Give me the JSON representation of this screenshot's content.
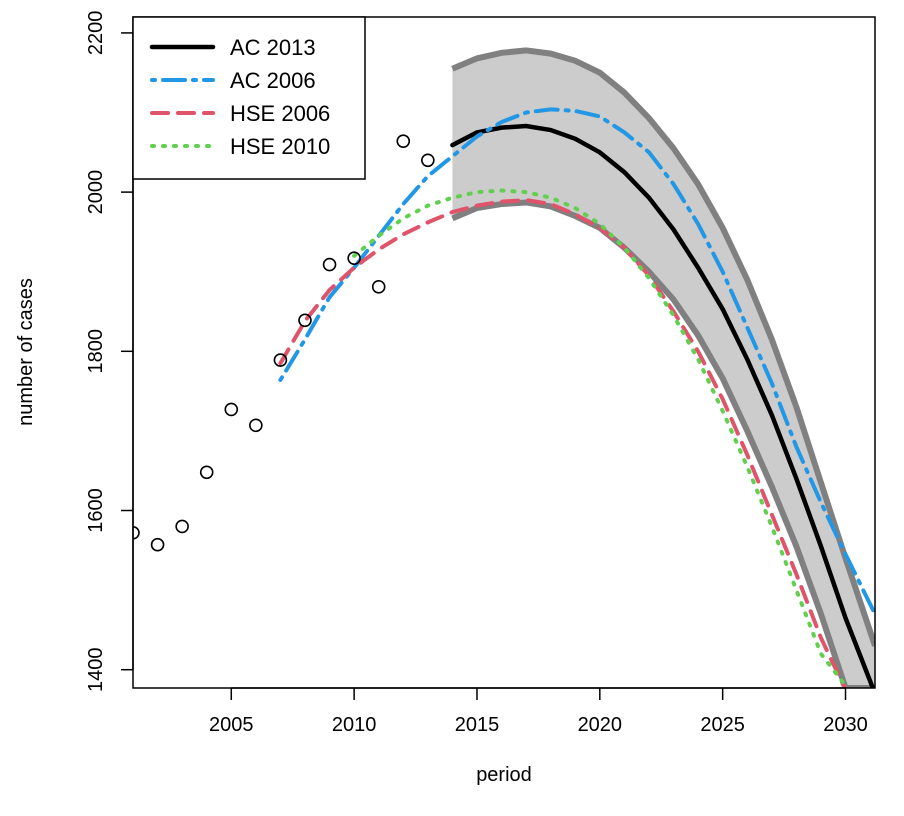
{
  "chart_data": {
    "type": "line",
    "title": "",
    "xlabel": "period",
    "ylabel": "number of cases",
    "xlim": [
      2001,
      2031.2
    ],
    "ylim": [
      1377,
      2220
    ],
    "x_ticks": [
      2005,
      2010,
      2015,
      2020,
      2025,
      2030
    ],
    "y_ticks": [
      1400,
      1600,
      1800,
      2000,
      2200
    ],
    "grid": false,
    "legend_position": "top-left",
    "observed": {
      "x": [
        2001,
        2002,
        2003,
        2004,
        2005,
        2006,
        2007,
        2008,
        2009,
        2010,
        2011,
        2012,
        2013
      ],
      "y": [
        1572,
        1557,
        1580,
        1648,
        1727,
        1707,
        1789,
        1839,
        1909,
        1917,
        1881,
        2064,
        2040
      ]
    },
    "band": {
      "x": [
        2014,
        2015,
        2016,
        2017,
        2018,
        2019,
        2020,
        2021,
        2022,
        2023,
        2024,
        2025,
        2026,
        2027,
        2028,
        2029,
        2030,
        2031.2
      ],
      "upper": [
        2155,
        2168,
        2175,
        2178,
        2174,
        2165,
        2150,
        2125,
        2093,
        2055,
        2010,
        1955,
        1890,
        1815,
        1730,
        1635,
        1540,
        1430
      ],
      "lower": [
        1967,
        1980,
        1985,
        1987,
        1982,
        1970,
        1955,
        1930,
        1900,
        1865,
        1820,
        1766,
        1700,
        1630,
        1555,
        1470,
        1377,
        1377
      ]
    },
    "series": [
      {
        "name": "AC 2013",
        "color": "#000000",
        "dash": "solid",
        "x": [
          2014,
          2015,
          2016,
          2017,
          2018,
          2019,
          2020,
          2021,
          2022,
          2023,
          2024,
          2025,
          2026,
          2027,
          2028,
          2029,
          2030,
          2031.2
        ],
        "y": [
          2059,
          2075,
          2081,
          2083,
          2078,
          2067,
          2050,
          2025,
          1993,
          1953,
          1905,
          1853,
          1790,
          1720,
          1640,
          1555,
          1465,
          1370
        ]
      },
      {
        "name": "AC 2006",
        "color": "#2297E6",
        "dash": "dotdash",
        "x": [
          2007,
          2008,
          2009,
          2010,
          2011,
          2012,
          2013,
          2014,
          2015,
          2016,
          2017,
          2018,
          2019,
          2020,
          2021,
          2022,
          2023,
          2024,
          2025,
          2026,
          2027,
          2028,
          2029,
          2030,
          2031.2
        ],
        "y": [
          1764,
          1815,
          1868,
          1905,
          1945,
          1985,
          2020,
          2045,
          2070,
          2088,
          2100,
          2104,
          2102,
          2095,
          2075,
          2050,
          2010,
          1960,
          1900,
          1830,
          1760,
          1680,
          1610,
          1545,
          1470
        ]
      },
      {
        "name": "HSE 2006",
        "color": "#DF536B",
        "dash": "dashed",
        "x": [
          2007,
          2008,
          2009,
          2010,
          2011,
          2012,
          2013,
          2014,
          2015,
          2016,
          2017,
          2018,
          2019,
          2020,
          2021,
          2022,
          2023,
          2024,
          2025,
          2026,
          2027,
          2028,
          2029,
          2030
        ],
        "y": [
          1785,
          1838,
          1877,
          1905,
          1928,
          1947,
          1962,
          1975,
          1983,
          1988,
          1990,
          1985,
          1972,
          1955,
          1930,
          1895,
          1850,
          1800,
          1740,
          1670,
          1595,
          1520,
          1440,
          1375
        ]
      },
      {
        "name": "HSE 2010",
        "color": "#61D04F",
        "dash": "dotted",
        "x": [
          2010,
          2011,
          2012,
          2013,
          2014,
          2015,
          2016,
          2017,
          2018,
          2019,
          2020,
          2021,
          2022,
          2023,
          2024,
          2025,
          2026,
          2027,
          2028,
          2029,
          2030
        ],
        "y": [
          1920,
          1945,
          1967,
          1983,
          1993,
          2000,
          2002,
          2000,
          1993,
          1980,
          1960,
          1930,
          1892,
          1845,
          1790,
          1725,
          1655,
          1580,
          1500,
          1420,
          1380
        ]
      }
    ]
  }
}
